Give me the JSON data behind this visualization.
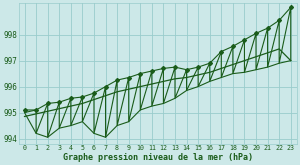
{
  "title": "Graphe pression niveau de la mer (hPa)",
  "bg_color": "#cce8e8",
  "grid_color": "#99cccc",
  "line_color": "#1a5c1a",
  "xlim": [
    -0.5,
    23.5
  ],
  "ylim": [
    993.8,
    999.2
  ],
  "yticks": [
    994,
    995,
    996,
    997,
    998
  ],
  "xtick_labels": [
    "0",
    "1",
    "2",
    "3",
    "4",
    "5",
    "6",
    "7",
    "8",
    "9",
    "10",
    "11",
    "12",
    "13",
    "14",
    "15",
    "16",
    "17",
    "18",
    "19",
    "20",
    "21",
    "22",
    "23"
  ],
  "hours": [
    0,
    1,
    2,
    3,
    4,
    5,
    6,
    7,
    8,
    9,
    10,
    11,
    12,
    13,
    14,
    15,
    16,
    17,
    18,
    19,
    20,
    21,
    22,
    23
  ],
  "pressure_peak": [
    995.1,
    995.1,
    995.35,
    995.4,
    995.55,
    995.6,
    995.75,
    996.0,
    996.25,
    996.35,
    996.5,
    996.6,
    996.7,
    996.75,
    996.65,
    996.75,
    996.9,
    997.35,
    997.55,
    997.8,
    998.05,
    998.25,
    998.55,
    999.05
  ],
  "pressure_valley": [
    995.0,
    994.2,
    994.05,
    994.4,
    994.5,
    994.65,
    994.2,
    994.05,
    994.5,
    994.65,
    995.1,
    995.25,
    995.35,
    995.55,
    995.85,
    996.0,
    996.2,
    996.35,
    996.5,
    996.55,
    996.65,
    996.75,
    996.9,
    997.0
  ],
  "trend_line": [
    994.85,
    994.95,
    995.05,
    995.15,
    995.25,
    995.35,
    995.5,
    995.65,
    995.8,
    995.9,
    996.0,
    996.1,
    996.2,
    996.3,
    996.35,
    996.45,
    996.55,
    996.7,
    996.85,
    997.0,
    997.15,
    997.3,
    997.45,
    997.0
  ]
}
